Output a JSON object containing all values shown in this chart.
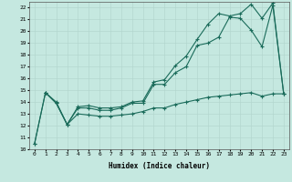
{
  "xlabel": "Humidex (Indice chaleur)",
  "background_color": "#c5e8e0",
  "line_color": "#1a6b5a",
  "xlim": [
    -0.5,
    23.5
  ],
  "ylim": [
    10,
    22.5
  ],
  "series1_x": [
    0,
    1,
    2,
    3,
    4,
    5,
    6,
    7,
    8,
    9,
    10,
    11,
    12,
    13,
    14,
    15,
    16,
    17,
    18,
    19,
    20,
    21,
    22,
    23
  ],
  "series1_y": [
    10.5,
    14.8,
    13.9,
    12.1,
    13.5,
    13.5,
    13.3,
    13.3,
    13.5,
    13.9,
    13.9,
    15.5,
    15.5,
    16.5,
    17.0,
    18.8,
    19.0,
    19.5,
    21.2,
    21.1,
    20.1,
    18.7,
    22.2,
    14.7
  ],
  "series2_x": [
    0,
    1,
    2,
    3,
    4,
    5,
    6,
    7,
    8,
    9,
    10,
    11,
    12,
    13,
    14,
    15,
    16,
    17,
    18,
    19,
    20,
    21,
    22,
    23
  ],
  "series2_y": [
    10.5,
    14.8,
    14.0,
    12.1,
    13.6,
    13.7,
    13.5,
    13.5,
    13.6,
    14.0,
    14.1,
    15.7,
    15.9,
    17.1,
    17.9,
    19.3,
    20.6,
    21.5,
    21.3,
    21.5,
    22.3,
    21.1,
    22.4,
    14.7
  ],
  "series3_x": [
    1,
    2,
    3,
    4,
    5,
    6,
    7,
    8,
    9,
    10,
    11,
    12,
    13,
    14,
    15,
    16,
    17,
    18,
    19,
    20,
    21,
    22,
    23
  ],
  "series3_y": [
    14.8,
    13.9,
    12.1,
    13.0,
    12.9,
    12.8,
    12.8,
    12.9,
    13.0,
    13.2,
    13.5,
    13.5,
    13.8,
    14.0,
    14.2,
    14.4,
    14.5,
    14.6,
    14.7,
    14.8,
    14.5,
    14.7,
    14.7
  ]
}
